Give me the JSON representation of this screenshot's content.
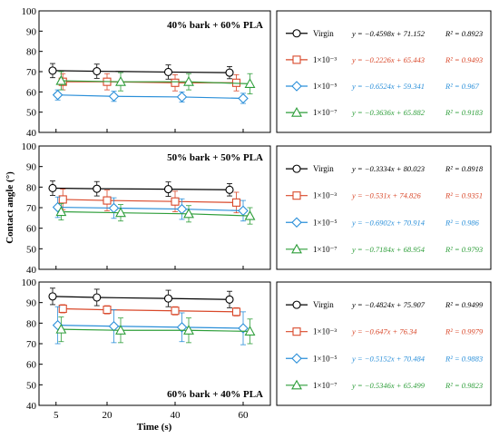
{
  "chart_data": [
    {
      "type": "line",
      "title": "40% bark + 60% PLA",
      "xlabel": "Time (s)",
      "ylabel": "Contact angle (°)",
      "xticks": [
        5,
        20,
        40,
        60
      ],
      "ylim": [
        40,
        100
      ],
      "yticks": [
        40,
        50,
        60,
        70,
        80,
        90,
        100
      ],
      "legend": "right-panel",
      "series": [
        {
          "name": "Virgin",
          "color": "#000000",
          "marker": "circle",
          "x": [
            4,
            17,
            38,
            56
          ],
          "y": [
            70.5,
            70.2,
            69.8,
            69.5
          ],
          "err": [
            3.5,
            3.5,
            3.5,
            3.0
          ],
          "equation": "y = −0.4598x + 71.152",
          "r2": "R² = 0.8923"
        },
        {
          "name": "1×10⁻³",
          "color": "#d9482a",
          "marker": "square",
          "x": [
            7,
            20,
            40,
            58
          ],
          "y": [
            65,
            65,
            64.5,
            64.5
          ],
          "err": [
            4,
            4,
            4,
            4
          ],
          "equation": "y = −0.2226x + 65.443",
          "r2": "R² = 0.9493"
        },
        {
          "name": "1×10⁻⁵",
          "color": "#2a8fd9",
          "marker": "diamond",
          "x": [
            5.5,
            22,
            42,
            60
          ],
          "y": [
            58.5,
            57.8,
            57.5,
            56.8
          ],
          "err": [
            2.5,
            2.5,
            2.5,
            2.5
          ],
          "equation": "y = −0.6524x + 59.341",
          "r2": "R² = 0.967"
        },
        {
          "name": "1×10⁻⁷",
          "color": "#2e9e3a",
          "marker": "triangle",
          "x": [
            6.5,
            24,
            44,
            62
          ],
          "y": [
            65.5,
            65,
            65,
            64
          ],
          "err": [
            4.5,
            4.5,
            4,
            5
          ],
          "equation": "y = −0.3636x + 65.882",
          "r2": "R² = 0.9183"
        }
      ]
    },
    {
      "type": "line",
      "title": "50% bark + 50% PLA",
      "xlabel": "Time (s)",
      "ylabel": "Contact angle (°)",
      "xticks": [
        5,
        20,
        40,
        60
      ],
      "ylim": [
        40,
        100
      ],
      "yticks": [
        40,
        50,
        60,
        70,
        80,
        90,
        100
      ],
      "legend": "right-panel",
      "series": [
        {
          "name": "Virgin",
          "color": "#000000",
          "marker": "circle",
          "x": [
            4,
            17,
            38,
            56
          ],
          "y": [
            79.5,
            79.2,
            79,
            78.7
          ],
          "err": [
            3.5,
            3.5,
            3.5,
            3.0
          ],
          "equation": "y = −0.3334x + 80.023",
          "r2": "R² = 0.8918"
        },
        {
          "name": "1×10⁻³",
          "color": "#d9482a",
          "marker": "square",
          "x": [
            7,
            20,
            40,
            58
          ],
          "y": [
            74,
            73.5,
            73,
            72.5
          ],
          "err": [
            5,
            5,
            5,
            5
          ],
          "equation": "y = −0.531x + 74.826",
          "r2": "R² = 0.9351"
        },
        {
          "name": "1×10⁻⁵",
          "color": "#2a8fd9",
          "marker": "diamond",
          "x": [
            5.5,
            22,
            42,
            60
          ],
          "y": [
            70.2,
            69.8,
            69.3,
            68.5
          ],
          "err": [
            5,
            5,
            5,
            5
          ],
          "equation": "y = −0.6902x + 70.914",
          "r2": "R² = 0.986"
        },
        {
          "name": "1×10⁻⁷",
          "color": "#2e9e3a",
          "marker": "triangle",
          "x": [
            6.5,
            24,
            44,
            62
          ],
          "y": [
            68,
            67.5,
            67,
            66
          ],
          "err": [
            4,
            4,
            4,
            4
          ],
          "equation": "y = −0.7184x + 68.954",
          "r2": "R² = 0.9793"
        }
      ]
    },
    {
      "type": "line",
      "title": "60% bark + 40% PLA",
      "xlabel": "Time (s)",
      "ylabel": "Contact angle (°)",
      "xticks": [
        5,
        20,
        40,
        60
      ],
      "ylim": [
        40,
        100
      ],
      "yticks": [
        40,
        50,
        60,
        70,
        80,
        90,
        100
      ],
      "legend": "right-panel",
      "series": [
        {
          "name": "Virgin",
          "color": "#000000",
          "marker": "circle",
          "x": [
            4,
            17,
            38,
            56
          ],
          "y": [
            93,
            92.5,
            92,
            91.5
          ],
          "err": [
            4,
            4,
            4,
            4
          ],
          "equation": "y = −0.4824x + 75.907",
          "r2": "R² = 0.9499"
        },
        {
          "name": "1×10⁻³",
          "color": "#d9482a",
          "marker": "square",
          "x": [
            7,
            20,
            40,
            58
          ],
          "y": [
            87,
            86.5,
            86,
            85.5
          ],
          "err": [
            2,
            2,
            2,
            2
          ],
          "equation": "y = −0.647x + 76.34",
          "r2": "R² = 0.9979"
        },
        {
          "name": "1×10⁻⁵",
          "color": "#2a8fd9",
          "marker": "diamond",
          "x": [
            5.5,
            22,
            42,
            60
          ],
          "y": [
            79,
            78.5,
            78,
            77.5
          ],
          "err": [
            9,
            8,
            7,
            8
          ],
          "equation": "y = −0.5152x + 70.484",
          "r2": "R² = 0.9883"
        },
        {
          "name": "1×10⁻⁷",
          "color": "#2e9e3a",
          "marker": "triangle",
          "x": [
            6.5,
            24,
            44,
            62
          ],
          "y": [
            77,
            76.5,
            76.5,
            76
          ],
          "err": [
            6,
            6,
            6,
            6
          ],
          "equation": "y = −0.5346x + 65.499",
          "r2": "R² = 0.9823"
        }
      ]
    }
  ]
}
